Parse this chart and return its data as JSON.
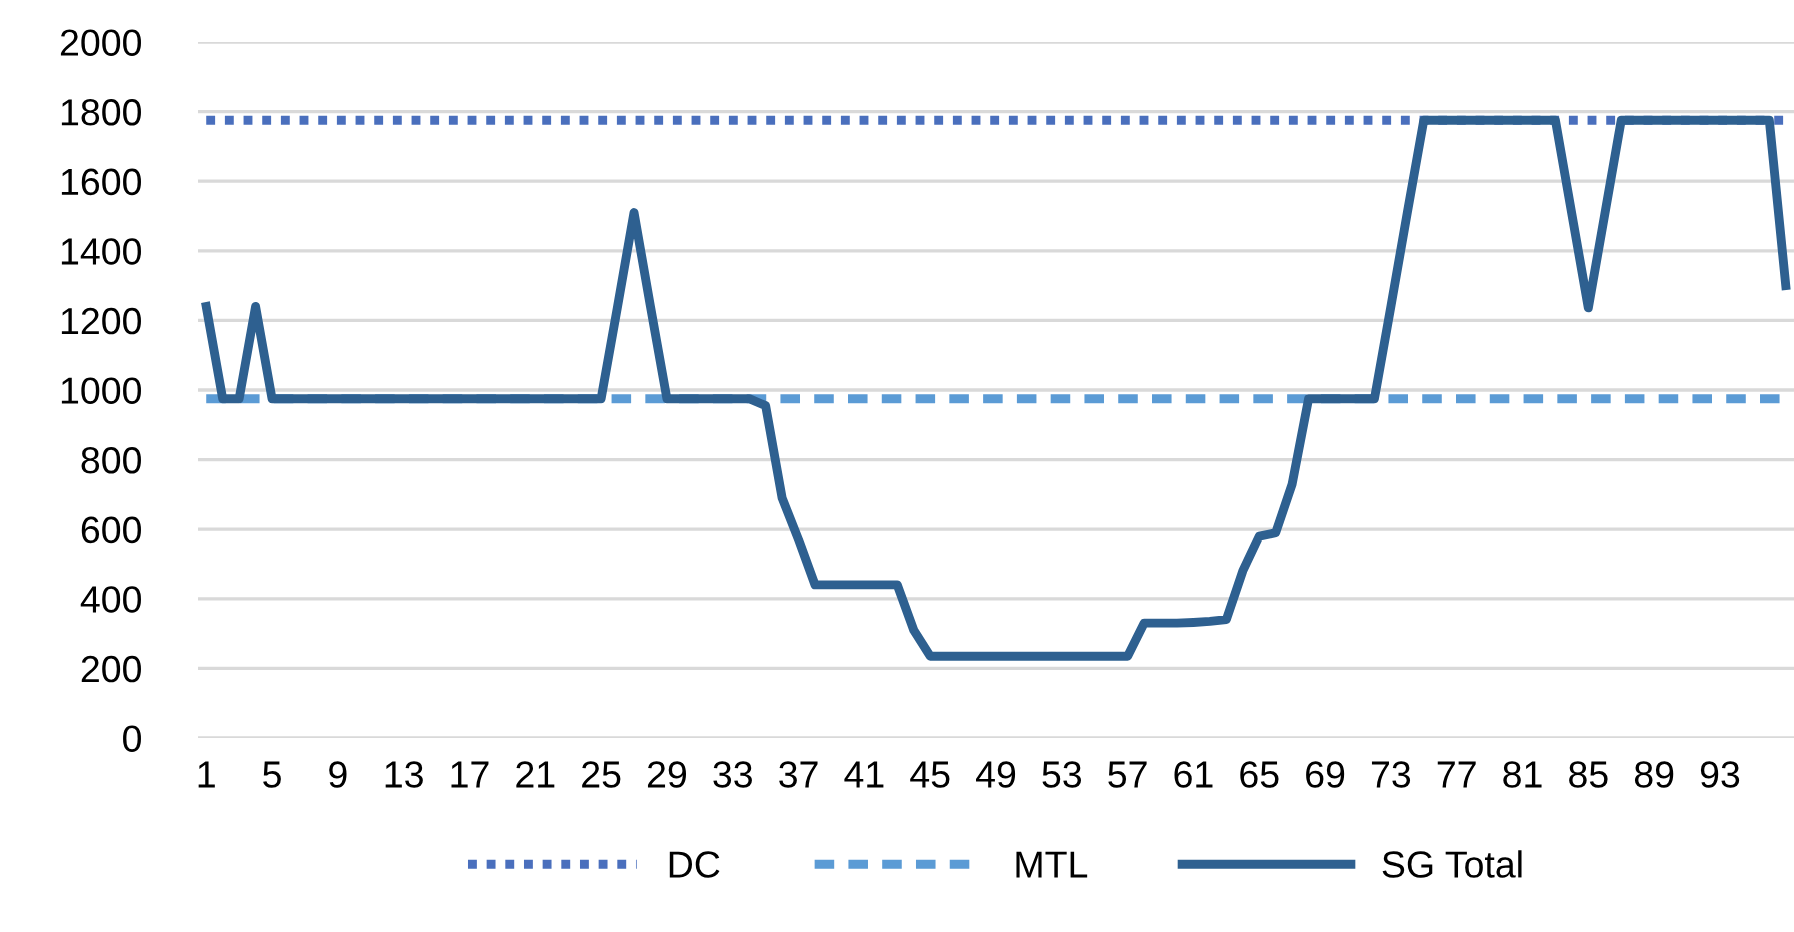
{
  "chart_data": {
    "type": "line",
    "categories": [
      "1",
      null,
      null,
      null,
      "5",
      null,
      null,
      null,
      "9",
      null,
      null,
      null,
      "13",
      null,
      null,
      null,
      "17",
      null,
      null,
      null,
      "21",
      null,
      null,
      null,
      "25",
      null,
      null,
      null,
      "29",
      null,
      null,
      null,
      "33",
      null,
      null,
      null,
      "37",
      null,
      null,
      null,
      "41",
      null,
      null,
      null,
      "45",
      null,
      null,
      null,
      "49",
      null,
      null,
      null,
      "53",
      null,
      null,
      null,
      "57",
      null,
      null,
      null,
      "61",
      null,
      null,
      null,
      "65",
      null,
      null,
      null,
      "69",
      null,
      null,
      null,
      "73",
      null,
      null,
      null,
      "77",
      null,
      null,
      null,
      "81",
      null,
      null,
      null,
      "85",
      null,
      null,
      null,
      "89",
      null,
      null,
      null,
      "93",
      null,
      null,
      null,
      null
    ],
    "series": [
      {
        "name": "DC",
        "color": "#4a6fbd",
        "line_style": "dotted",
        "values": [
          1775,
          1775,
          1775,
          1775,
          1775,
          1775,
          1775,
          1775,
          1775,
          1775,
          1775,
          1775,
          1775,
          1775,
          1775,
          1775,
          1775,
          1775,
          1775,
          1775,
          1775,
          1775,
          1775,
          1775,
          1775,
          1775,
          1775,
          1775,
          1775,
          1775,
          1775,
          1775,
          1775,
          1775,
          1775,
          1775,
          1775,
          1775,
          1775,
          1775,
          1775,
          1775,
          1775,
          1775,
          1775,
          1775,
          1775,
          1775,
          1775,
          1775,
          1775,
          1775,
          1775,
          1775,
          1775,
          1775,
          1775,
          1775,
          1775,
          1775,
          1775,
          1775,
          1775,
          1775,
          1775,
          1775,
          1775,
          1775,
          1775,
          1775,
          1775,
          1775,
          1775,
          1775,
          1775,
          1775,
          1775,
          1775,
          1775,
          1775,
          1775,
          1775,
          1775,
          1775,
          1775,
          1775,
          1775,
          1775,
          1775,
          1775,
          1775,
          1775,
          1775,
          1775,
          1775,
          1775,
          1775
        ]
      },
      {
        "name": "MTL",
        "color": "#5b9bd5",
        "line_style": "dashed",
        "values": [
          975,
          975,
          975,
          975,
          975,
          975,
          975,
          975,
          975,
          975,
          975,
          975,
          975,
          975,
          975,
          975,
          975,
          975,
          975,
          975,
          975,
          975,
          975,
          975,
          975,
          975,
          975,
          975,
          975,
          975,
          975,
          975,
          975,
          975,
          975,
          975,
          975,
          975,
          975,
          975,
          975,
          975,
          975,
          975,
          975,
          975,
          975,
          975,
          975,
          975,
          975,
          975,
          975,
          975,
          975,
          975,
          975,
          975,
          975,
          975,
          975,
          975,
          975,
          975,
          975,
          975,
          975,
          975,
          975,
          975,
          975,
          975,
          975,
          975,
          975,
          975,
          975,
          975,
          975,
          975,
          975,
          975,
          975,
          975,
          975,
          975,
          975,
          975,
          975,
          975,
          975,
          975,
          975,
          975,
          975,
          975,
          975
        ]
      },
      {
        "name": "SG Total",
        "color": "#2e6090",
        "line_style": "solid",
        "values": [
          1240,
          975,
          975,
          1240,
          975,
          975,
          975,
          975,
          975,
          975,
          975,
          975,
          975,
          975,
          975,
          975,
          975,
          975,
          975,
          975,
          975,
          975,
          975,
          975,
          975,
          1240,
          1510,
          1240,
          975,
          975,
          975,
          975,
          975,
          975,
          955,
          690,
          570,
          440,
          440,
          440,
          440,
          440,
          440,
          310,
          235,
          235,
          235,
          235,
          235,
          235,
          235,
          235,
          235,
          235,
          235,
          235,
          235,
          330,
          330,
          330,
          332,
          335,
          340,
          480,
          580,
          590,
          730,
          975,
          975,
          975,
          975,
          975,
          1240,
          1510,
          1775,
          1775,
          1775,
          1775,
          1775,
          1775,
          1775,
          1775,
          1775,
          1505,
          1236,
          1505,
          1775,
          1775,
          1775,
          1775,
          1775,
          1775,
          1775,
          1775,
          1775,
          1775,
          1300
        ]
      }
    ],
    "ylim": [
      0,
      2000
    ],
    "yticks": [
      0,
      200,
      400,
      600,
      800,
      1000,
      1200,
      1400,
      1600,
      1800,
      2000
    ],
    "grid": "y",
    "legend": "bottom",
    "marker": "none"
  }
}
